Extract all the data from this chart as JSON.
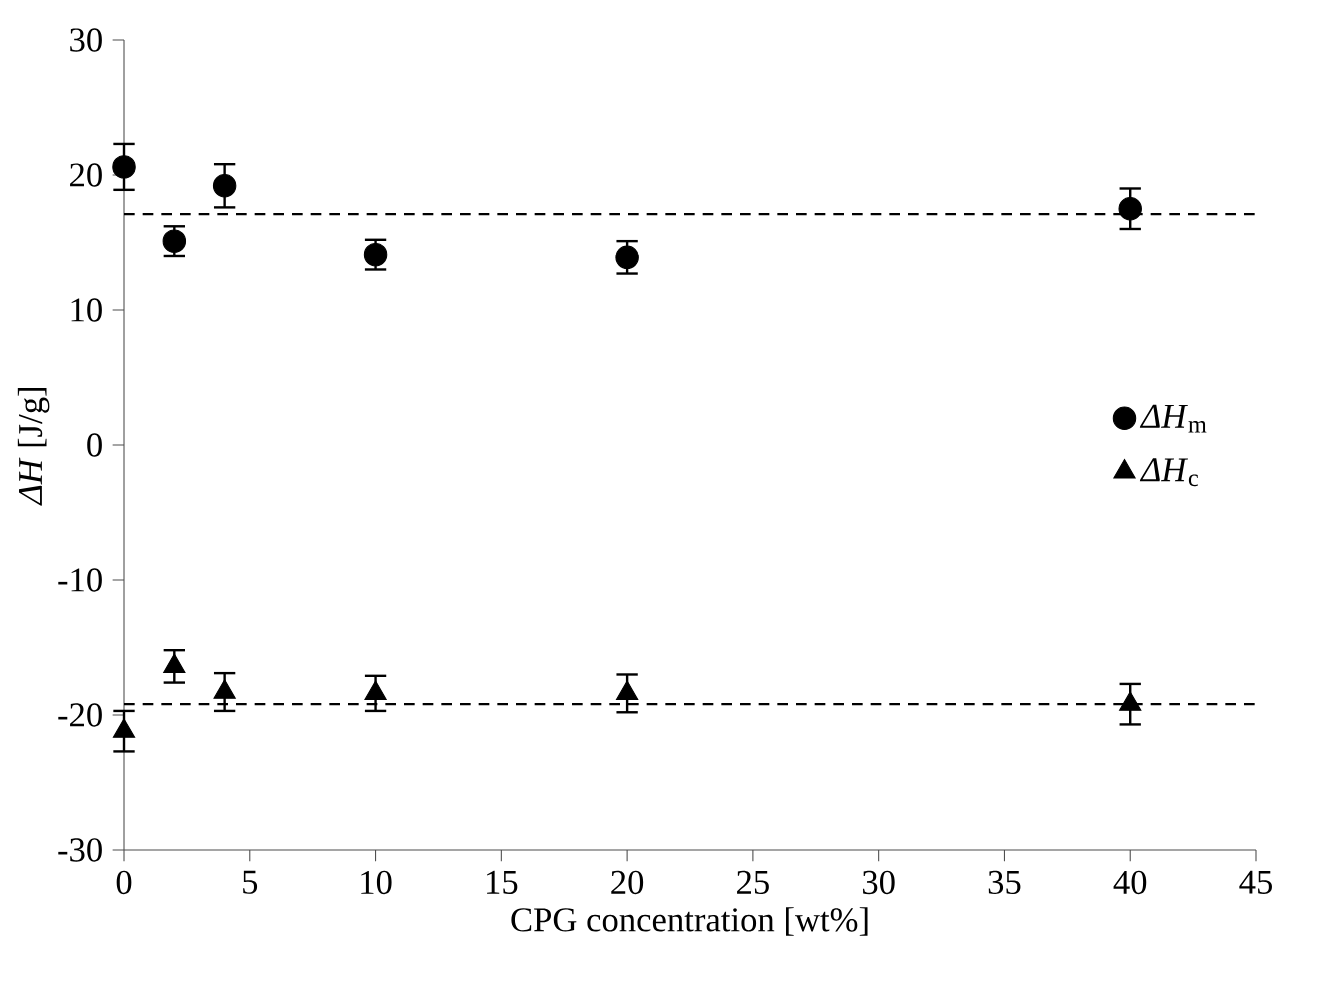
{
  "chart_data": {
    "type": "scatter",
    "xlabel": "CPG concentration [wt%]",
    "ylabel": "*ΔH* [J/g]",
    "xlim": [
      0,
      45
    ],
    "xticks": [
      0,
      5,
      10,
      15,
      20,
      25,
      30,
      35,
      40,
      45
    ],
    "ylim": [
      -30,
      30
    ],
    "yticks": [
      -30,
      -20,
      -10,
      0,
      10,
      20,
      30
    ],
    "grid": false,
    "legend": "right",
    "x": [
      0,
      2,
      4,
      10,
      20,
      40
    ],
    "series": [
      {
        "name": "*ΔH*$_{m}$",
        "color": "#000000",
        "marker": "circle",
        "values": [
          20.6,
          15.1,
          19.2,
          14.1,
          13.9,
          17.5
        ],
        "errors": [
          1.7,
          1.1,
          1.6,
          1.1,
          1.2,
          1.5
        ]
      },
      {
        "name": "*ΔH*$_{c}$",
        "color": "#000000",
        "marker": "triangle",
        "values": [
          -21.2,
          -16.4,
          -18.3,
          -18.4,
          -18.4,
          -19.2
        ],
        "errors": [
          1.5,
          1.2,
          1.4,
          1.3,
          1.4,
          1.5
        ]
      }
    ],
    "ref_lines": [
      {
        "axis": "y",
        "value": 17.1,
        "line_style": "dashed"
      },
      {
        "axis": "y",
        "value": -19.2,
        "line_style": "dashed"
      }
    ]
  }
}
